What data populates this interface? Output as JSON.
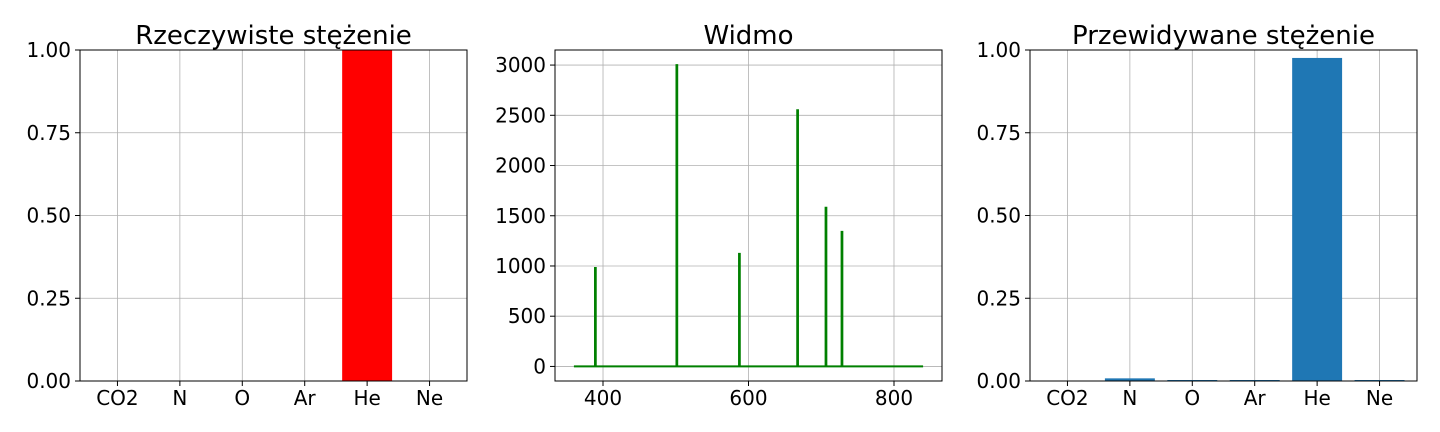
{
  "chart_data": [
    {
      "type": "bar",
      "title": "Rzeczywiste stężenie",
      "categories": [
        "CO2",
        "N",
        "O",
        "Ar",
        "He",
        "Ne"
      ],
      "values": [
        0,
        0,
        0,
        0,
        1.0,
        0
      ],
      "color": "#ff0000",
      "ylim": [
        0,
        1
      ],
      "yticks": [
        "0.00",
        "0.25",
        "0.50",
        "0.75",
        "1.00"
      ],
      "grid": true
    },
    {
      "type": "line",
      "title": "Widmo",
      "color": "#008000",
      "x": [
        360,
        389,
        389,
        390,
        390,
        501,
        501,
        502,
        502,
        587,
        587,
        588,
        588,
        667,
        667,
        668,
        668,
        706,
        706,
        707,
        707,
        728,
        728,
        729,
        729,
        840
      ],
      "y": [
        0,
        0,
        980,
        980,
        0,
        0,
        3000,
        3000,
        0,
        0,
        1120,
        1120,
        0,
        0,
        2550,
        2550,
        0,
        0,
        1580,
        1580,
        0,
        0,
        1340,
        1340,
        0,
        0
      ],
      "xlim": [
        334,
        866
      ],
      "ylim": [
        -145,
        3150
      ],
      "xticks": [
        "400",
        "600",
        "800"
      ],
      "yticks": [
        "0",
        "500",
        "1000",
        "1500",
        "2000",
        "2500",
        "3000"
      ],
      "grid": true
    },
    {
      "type": "bar",
      "title": "Przewidywane stężenie",
      "categories": [
        "CO2",
        "N",
        "O",
        "Ar",
        "He",
        "Ne"
      ],
      "values": [
        0.0,
        0.008,
        0.003,
        0.003,
        0.976,
        0.003
      ],
      "color": "#1f77b4",
      "ylim": [
        0,
        1
      ],
      "yticks": [
        "0.00",
        "0.25",
        "0.50",
        "0.75",
        "1.00"
      ],
      "grid": true
    }
  ]
}
